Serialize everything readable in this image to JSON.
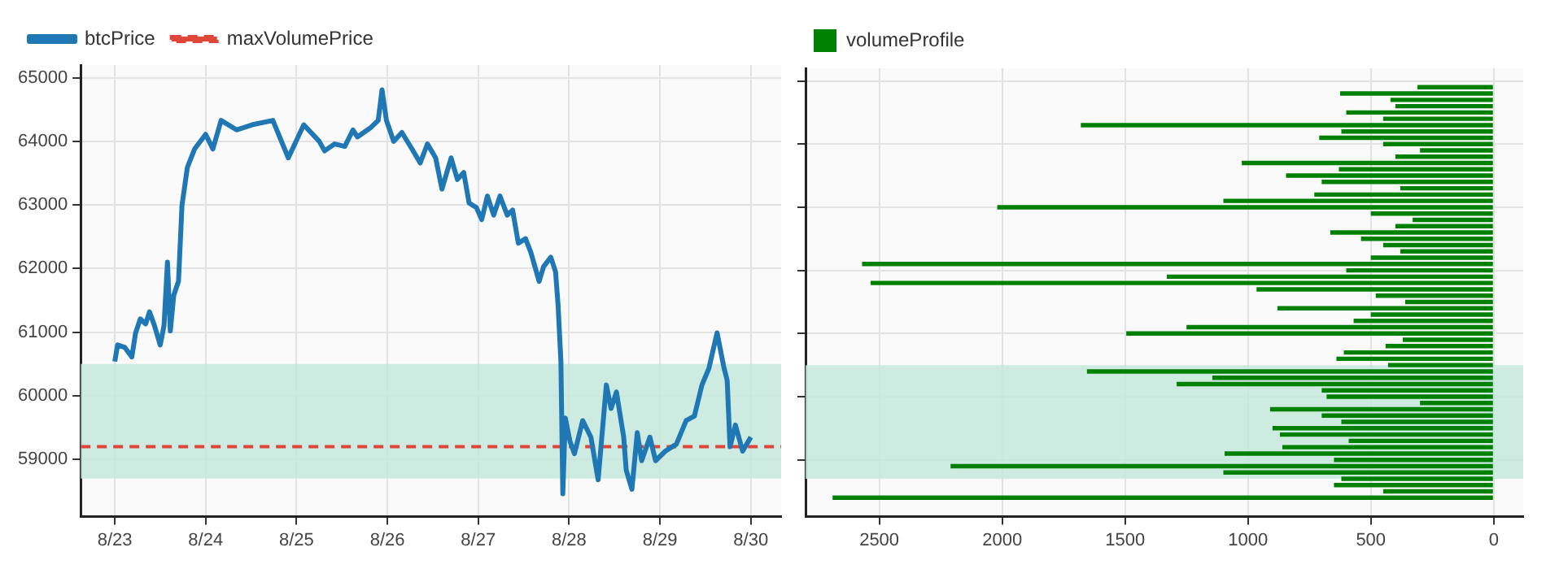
{
  "chart_data": [
    {
      "type": "line",
      "x": [
        "--08-23T00:00",
        "--08-23T00:45",
        "--08-23T02:40",
        "--08-23T04:30",
        "--08-23T05:30",
        "--08-23T06:45",
        "--08-23T08:10",
        "--08-23T09:10",
        "--08-23T10:30",
        "--08-23T12:00",
        "--08-23T13:00",
        "--08-23T13:55",
        "--08-23T14:40",
        "--08-23T15:35",
        "--08-23T16:50",
        "--08-23T17:45",
        "--08-23T19:10",
        "--08-23T21:05",
        "--08-24T00:00",
        "--08-24T01:55",
        "--08-24T04:05",
        "--08-24T08:10",
        "--08-24T12:15",
        "--08-24T17:45",
        "--08-24T21:50",
        "--08-25T01:55",
        "--08-25T06:00",
        "--08-25T07:25",
        "--08-25T10:05",
        "--08-25T12:45",
        "--08-25T14:55",
        "--08-25T16:05",
        "--08-25T19:40",
        "--08-25T21:35",
        "--08-25T22:35",
        "--08-25T23:45",
        "--08-26T01:40",
        "--08-26T03:50",
        "--08-26T06:30",
        "--08-26T08:40",
        "--08-26T10:35",
        "--08-26T12:45",
        "--08-26T14:25",
        "--08-26T16:50",
        "--08-26T18:30",
        "--08-26T20:10",
        "--08-26T21:35",
        "--08-26T23:30",
        "--08-27T00:55",
        "--08-27T02:25",
        "--08-27T04:05",
        "--08-27T05:45",
        "--08-27T07:40",
        "--08-27T09:05",
        "--08-27T10:35",
        "--08-27T12:30",
        "--08-27T13:55",
        "--08-27T16:05",
        "--08-27T17:15",
        "--08-27T19:10",
        "--08-27T20:25",
        "--08-27T21:05",
        "--08-27T21:50",
        "--08-27T22:20",
        "--08-27T23:00",
        "--08-28T00:15",
        "--08-28T01:25",
        "--08-28T03:35",
        "--08-28T05:45",
        "--08-28T07:40",
        "--08-28T09:50",
        "--08-28T11:05",
        "--08-28T12:30",
        "--08-28T14:25",
        "--08-28T15:05",
        "--08-28T16:35",
        "--08-28T18:00",
        "--08-28T19:10",
        "--08-28T21:20",
        "--08-28T22:50",
        "--08-29T01:25",
        "--08-29T04:20",
        "--08-29T06:55",
        "--08-29T09:05",
        "--08-29T11:05",
        "--08-29T12:55",
        "--08-29T15:05",
        "--08-29T16:50",
        "--08-29T17:45",
        "--08-29T18:30",
        "--08-29T19:55",
        "--08-29T21:50",
        "--08-30T00:00"
      ],
      "series": [
        {
          "name": "btcPrice",
          "color": "#1f77b4",
          "values": [
            60540,
            60800,
            60760,
            60610,
            60990,
            61210,
            61130,
            61320,
            61100,
            60800,
            61100,
            62100,
            61020,
            61580,
            61800,
            62990,
            63590,
            63880,
            64110,
            63880,
            64330,
            64180,
            64260,
            64330,
            63740,
            64260,
            64000,
            63850,
            63960,
            63920,
            64180,
            64070,
            64220,
            64330,
            64810,
            64330,
            64000,
            64140,
            63880,
            63660,
            63960,
            63740,
            63250,
            63740,
            63400,
            63510,
            63030,
            62960,
            62770,
            63140,
            62840,
            63140,
            62840,
            62920,
            62400,
            62470,
            62250,
            61800,
            62030,
            62180,
            61950,
            61430,
            60540,
            58460,
            59650,
            59280,
            59090,
            59610,
            59350,
            58680,
            60170,
            59800,
            60060,
            59350,
            58830,
            58530,
            59420,
            58980,
            59350,
            58980,
            59130,
            59240,
            59610,
            59680,
            60170,
            60430,
            60990,
            60460,
            60240,
            59200,
            59540,
            59130,
            59350
          ]
        }
      ],
      "ref_lines": [
        {
          "axis": "y",
          "value": 59200,
          "label": "maxVolumePrice",
          "color": "#e0453a",
          "line_style": "dashed"
        }
      ],
      "bands": [
        {
          "axis": "y",
          "from": 58700,
          "to": 60500,
          "color": "#c6e8dc"
        }
      ],
      "xlim": [
        "--08-22T15:00",
        "--08-30T08:00"
      ],
      "xticks": [
        {
          "value": "--08-23",
          "label": "8/23"
        },
        {
          "value": "--08-24",
          "label": "8/24"
        },
        {
          "value": "--08-25",
          "label": "8/25"
        },
        {
          "value": "--08-26",
          "label": "8/26"
        },
        {
          "value": "--08-27",
          "label": "8/27"
        },
        {
          "value": "--08-28",
          "label": "8/28"
        },
        {
          "value": "--08-29",
          "label": "8/29"
        },
        {
          "value": "--08-30",
          "label": "8/30"
        }
      ],
      "ylim": [
        58100,
        65200
      ],
      "yticks": [
        59000,
        60000,
        61000,
        62000,
        63000,
        64000,
        65000
      ],
      "grid": true,
      "legend": "top left"
    },
    {
      "type": "bar",
      "orientation": "horizontal",
      "x": [
        58400,
        58500,
        58600,
        58700,
        58800,
        58900,
        59000,
        59100,
        59200,
        59300,
        59400,
        59500,
        59600,
        59700,
        59800,
        59900,
        60000,
        60100,
        60200,
        60300,
        60400,
        60500,
        60600,
        60700,
        60800,
        60900,
        61000,
        61100,
        61200,
        61300,
        61400,
        61500,
        61600,
        61700,
        61800,
        61900,
        62000,
        62100,
        62200,
        62300,
        62400,
        62500,
        62600,
        62700,
        62800,
        62900,
        63000,
        63100,
        63200,
        63300,
        63400,
        63500,
        63600,
        63700,
        63800,
        63900,
        64000,
        64100,
        64200,
        64300,
        64400,
        64500,
        64600,
        64700,
        64800,
        64900
      ],
      "series": [
        {
          "name": "volumeProfile",
          "color": "#008000",
          "values": [
            2690,
            450,
            650,
            620,
            1100,
            2210,
            650,
            1095,
            860,
            590,
            870,
            900,
            620,
            700,
            910,
            300,
            680,
            700,
            1290,
            1145,
            1655,
            430,
            640,
            610,
            440,
            370,
            1495,
            1250,
            570,
            500,
            880,
            360,
            480,
            965,
            2535,
            1330,
            600,
            2570,
            500,
            380,
            450,
            540,
            665,
            400,
            330,
            500,
            2020,
            1100,
            730,
            380,
            700,
            845,
            630,
            1025,
            400,
            300,
            450,
            710,
            620,
            1680,
            450,
            600,
            400,
            420,
            625,
            310
          ]
        }
      ],
      "bands": [
        {
          "axis": "y",
          "from": 58700,
          "to": 60500,
          "color": "#c6e8dc"
        }
      ],
      "xlim": [
        2800,
        -120
      ],
      "xticks": [
        2500,
        2000,
        1500,
        1000,
        500,
        0
      ],
      "ylim": [
        58100,
        65200
      ],
      "yticks": [
        59000,
        60000,
        61000,
        62000,
        63000,
        64000,
        65000
      ],
      "tick_labels": "x",
      "grid": true,
      "legend": "top left"
    }
  ]
}
